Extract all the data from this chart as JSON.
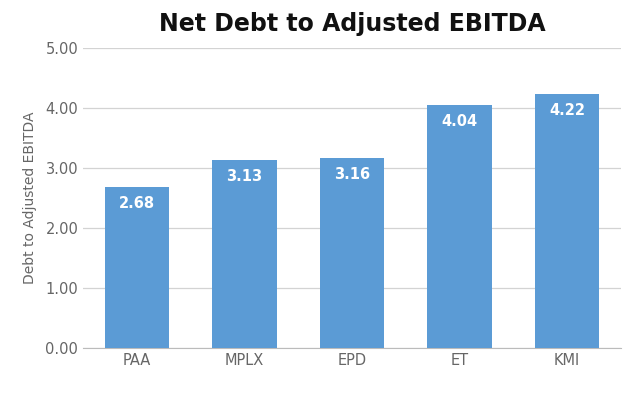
{
  "title": "Net Debt to Adjusted EBITDA",
  "categories": [
    "PAA",
    "MPLX",
    "EPD",
    "ET",
    "KMI"
  ],
  "values": [
    2.68,
    3.13,
    3.16,
    4.04,
    4.22
  ],
  "bar_color": "#5B9BD5",
  "ylabel": "Debt to Adjusted EBITDA",
  "ylim": [
    0,
    5.0
  ],
  "yticks": [
    0.0,
    1.0,
    2.0,
    3.0,
    4.0,
    5.0
  ],
  "ytick_labels": [
    "0.00",
    "1.00",
    "2.00",
    "3.00",
    "4.00",
    "5.00"
  ],
  "background_color": "#FFFFFF",
  "grid_color": "#D3D3D3",
  "title_fontsize": 17,
  "label_fontsize": 10,
  "tick_fontsize": 10.5,
  "value_fontsize": 10.5,
  "value_color": "#FFFFFF"
}
